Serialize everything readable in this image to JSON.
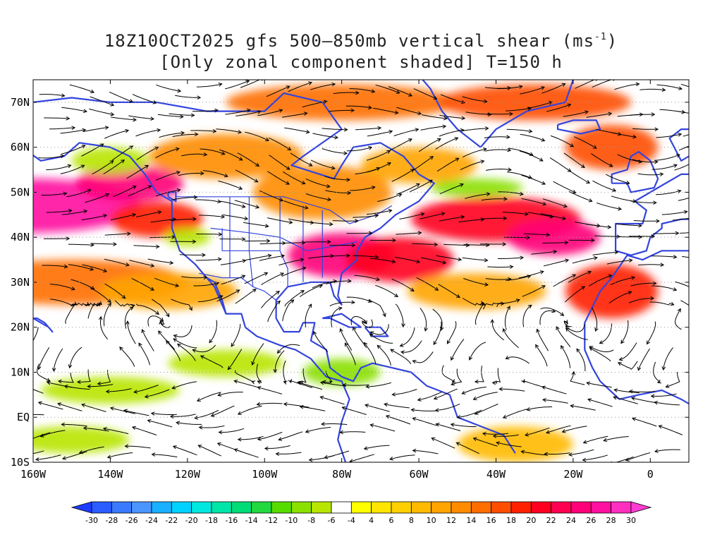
{
  "title": {
    "line1_prefix": "18Z10OCT2025 gfs 500–850mb vertical shear (ms",
    "line1_sup": "-1",
    "line1_suffix": ")",
    "line2": "[Only zonal component shaded] T=150 h"
  },
  "map": {
    "lon_range": [
      -160,
      10
    ],
    "lat_range": [
      -10,
      75
    ],
    "lat_ticks": [
      {
        "value": 70,
        "label": "70N"
      },
      {
        "value": 60,
        "label": "60N"
      },
      {
        "value": 50,
        "label": "50N"
      },
      {
        "value": 40,
        "label": "40N"
      },
      {
        "value": 30,
        "label": "30N"
      },
      {
        "value": 20,
        "label": "20N"
      },
      {
        "value": 10,
        "label": "10N"
      },
      {
        "value": 0,
        "label": "EQ"
      },
      {
        "value": -10,
        "label": "10S"
      }
    ],
    "lon_ticks": [
      {
        "value": -160,
        "label": "160W"
      },
      {
        "value": -140,
        "label": "140W"
      },
      {
        "value": -120,
        "label": "120W"
      },
      {
        "value": -100,
        "label": "100W"
      },
      {
        "value": -80,
        "label": "80W"
      },
      {
        "value": -60,
        "label": "60W"
      },
      {
        "value": -40,
        "label": "40W"
      },
      {
        "value": -20,
        "label": "20W"
      },
      {
        "value": 0,
        "label": "0"
      }
    ],
    "coastline_color": "#3344dd",
    "streamline_color": "#000000"
  },
  "colorbar": {
    "levels": [
      -30,
      -28,
      -26,
      -24,
      -22,
      -20,
      -18,
      -16,
      -14,
      -12,
      -10,
      -8,
      -6,
      -4,
      4,
      6,
      8,
      10,
      12,
      14,
      16,
      18,
      20,
      22,
      24,
      26,
      28,
      30
    ],
    "labels": [
      "-30",
      "-28",
      "-26",
      "-24",
      "-22",
      "-20",
      "-18",
      "-16",
      "-14",
      "-12",
      "-10",
      "-8",
      "-6",
      "-4",
      "4",
      "6",
      "8",
      "10",
      "12",
      "14",
      "16",
      "18",
      "20",
      "22",
      "24",
      "26",
      "28",
      "30"
    ],
    "colors": [
      "#1e3cff",
      "#2a5cff",
      "#3a7aff",
      "#4b95ff",
      "#18b0ff",
      "#00d2ff",
      "#00e8e0",
      "#00e6a8",
      "#00dc78",
      "#22d840",
      "#58dc00",
      "#8ae000",
      "#b8e600",
      "#ffffff",
      "#ffff00",
      "#ffe600",
      "#ffd000",
      "#ffba00",
      "#ffa400",
      "#ff8c00",
      "#ff6e00",
      "#ff4e00",
      "#ff2000",
      "#ff0020",
      "#ff0050",
      "#ff0078",
      "#ff10a0",
      "#ff30c0",
      "#ff3cd2"
    ]
  },
  "shading": [
    {
      "lon": -160,
      "lat": 47,
      "rx": 28,
      "ry": 6,
      "value": 26
    },
    {
      "lon": -135,
      "lat": 52,
      "rx": 14,
      "ry": 4,
      "value": 24
    },
    {
      "lon": -128,
      "lat": 44,
      "rx": 12,
      "ry": 4,
      "value": 18
    },
    {
      "lon": -150,
      "lat": 30,
      "rx": 30,
      "ry": 5,
      "value": 14
    },
    {
      "lon": -125,
      "lat": 28,
      "rx": 18,
      "ry": 4,
      "value": 10
    },
    {
      "lon": -80,
      "lat": 36,
      "rx": 14,
      "ry": 5,
      "value": 24
    },
    {
      "lon": -65,
      "lat": 35,
      "rx": 14,
      "ry": 5,
      "value": 20
    },
    {
      "lon": -85,
      "lat": 50,
      "rx": 18,
      "ry": 6,
      "value": 12
    },
    {
      "lon": -110,
      "lat": 58,
      "rx": 20,
      "ry": 5,
      "value": 12
    },
    {
      "lon": -80,
      "lat": 70,
      "rx": 30,
      "ry": 4,
      "value": 14
    },
    {
      "lon": -30,
      "lat": 70,
      "rx": 25,
      "ry": 4,
      "value": 16
    },
    {
      "lon": -40,
      "lat": 44,
      "rx": 22,
      "ry": 5,
      "value": 20
    },
    {
      "lon": -25,
      "lat": 40,
      "rx": 12,
      "ry": 4,
      "value": 24
    },
    {
      "lon": -10,
      "lat": 28,
      "rx": 12,
      "ry": 6,
      "value": 18
    },
    {
      "lon": -45,
      "lat": 28,
      "rx": 18,
      "ry": 4,
      "value": 10
    },
    {
      "lon": -35,
      "lat": -6,
      "rx": 15,
      "ry": 4,
      "value": 8
    },
    {
      "lon": -60,
      "lat": 56,
      "rx": 15,
      "ry": 4,
      "value": 10
    },
    {
      "lon": -10,
      "lat": 60,
      "rx": 12,
      "ry": 5,
      "value": 16
    },
    {
      "lon": -140,
      "lat": 6,
      "rx": 18,
      "ry": 3,
      "value": -8
    },
    {
      "lon": -110,
      "lat": 12,
      "rx": 15,
      "ry": 3,
      "value": -8
    },
    {
      "lon": -80,
      "lat": 10,
      "rx": 10,
      "ry": 3,
      "value": -10
    },
    {
      "lon": -140,
      "lat": 57,
      "rx": 10,
      "ry": 3,
      "value": -8
    },
    {
      "lon": -45,
      "lat": 51,
      "rx": 12,
      "ry": 2,
      "value": -10
    },
    {
      "lon": -150,
      "lat": -5,
      "rx": 15,
      "ry": 3,
      "value": -8
    },
    {
      "lon": -120,
      "lat": 40,
      "rx": 6,
      "ry": 2,
      "value": -8
    }
  ]
}
